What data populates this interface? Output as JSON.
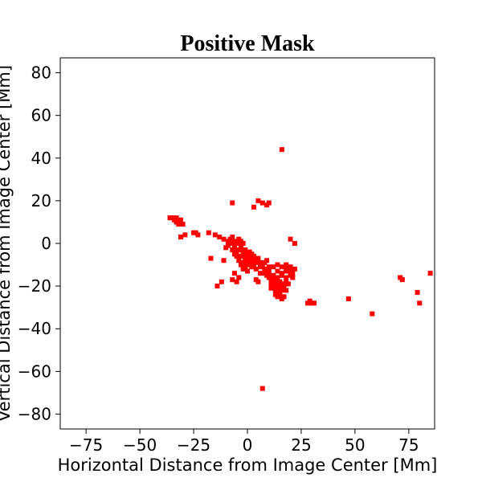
{
  "chart_data": {
    "type": "scatter",
    "title": "Positive Mask",
    "xlabel": "Horizontal Distance from Image Center [Mm]",
    "ylabel": "Vertical Distance from Image Center [Mm]",
    "xlim": [
      -87,
      87
    ],
    "ylim": [
      -87,
      87
    ],
    "xticks": [
      -75,
      -50,
      -25,
      0,
      25,
      50,
      75
    ],
    "yticks": [
      80,
      60,
      40,
      20,
      0,
      -20,
      -40,
      -60,
      -80
    ],
    "xtick_labels": [
      "−75",
      "−50",
      "−25",
      "0",
      "25",
      "50",
      "75"
    ],
    "ytick_labels": [
      "80",
      "60",
      "40",
      "20",
      "0",
      "−20",
      "−40",
      "−60",
      "−80"
    ],
    "grid": false,
    "color": "#ff0000",
    "series": [
      {
        "x": [
          -35,
          -33,
          -31,
          -34,
          -32,
          -30,
          -36,
          -33,
          -32,
          -25,
          -24,
          -31,
          -23,
          -29,
          -18,
          -15,
          -13,
          -11,
          -9,
          -8,
          -7,
          -6,
          -5,
          -4,
          -3,
          -10,
          -9,
          -8,
          -7,
          -6,
          -5,
          -4,
          -3,
          -2,
          -7,
          -6,
          -5,
          -4,
          -3,
          -2,
          -1,
          0,
          1,
          2,
          -6,
          -5,
          -4,
          -3,
          -2,
          -1,
          0,
          1,
          2,
          3,
          4,
          5,
          -4,
          -3,
          -2,
          -1,
          0,
          1,
          2,
          3,
          4,
          5,
          6,
          7,
          8,
          9,
          -3,
          -2,
          -1,
          0,
          2,
          4,
          6,
          8,
          9,
          10,
          -2,
          0,
          6,
          8,
          10,
          12,
          14,
          16,
          18,
          20,
          22,
          8,
          9,
          10,
          12,
          14,
          16,
          18,
          20,
          21,
          10,
          11,
          12,
          13,
          14,
          16,
          18,
          20,
          21,
          11,
          12,
          13,
          14,
          15,
          16,
          17,
          18,
          19,
          11,
          12,
          13,
          14,
          15,
          16,
          17,
          18,
          13,
          14,
          15,
          16,
          17,
          -6,
          -4,
          4,
          5,
          14,
          15,
          16,
          17,
          -7,
          -5,
          18,
          20,
          21,
          -12,
          -14,
          -17,
          -11,
          5,
          7,
          9,
          10,
          3,
          -7,
          16,
          20,
          22,
          28,
          29,
          30,
          31,
          47,
          58,
          71,
          72,
          79,
          80,
          85,
          16,
          7
        ],
        "y": [
          12,
          12,
          11,
          11,
          10,
          9,
          12,
          10,
          9,
          5,
          5,
          3,
          4,
          4,
          5,
          4,
          3,
          2,
          1,
          2,
          3,
          1,
          0,
          2,
          1,
          -2,
          -1,
          0,
          1,
          -1,
          0,
          1,
          -1,
          0,
          -3,
          -2,
          -4,
          -3,
          -2,
          -4,
          -3,
          -5,
          -4,
          -5,
          -5,
          -6,
          -7,
          -6,
          -5,
          -7,
          -6,
          -8,
          -7,
          -6,
          -8,
          -7,
          -8,
          -9,
          -9,
          -8,
          -9,
          -10,
          -9,
          -10,
          -9,
          -8,
          -9,
          -10,
          -9,
          -8,
          -10,
          -11,
          -12,
          -10,
          -11,
          -12,
          -11,
          -12,
          -13,
          -11,
          -12,
          -13,
          -14,
          -13,
          -12,
          -11,
          -10,
          -11,
          -10,
          -11,
          -12,
          -14,
          -15,
          -14,
          -15,
          -13,
          -14,
          -13,
          -14,
          -15,
          -16,
          -17,
          -18,
          -16,
          -17,
          -15,
          -16,
          -15,
          -16,
          -19,
          -18,
          -20,
          -19,
          -18,
          -20,
          -19,
          -18,
          -19,
          -21,
          -20,
          -22,
          -21,
          -23,
          -22,
          -21,
          -22,
          -24,
          -25,
          -24,
          -26,
          -25,
          -14,
          -16,
          -17,
          -18,
          -16,
          -18,
          -20,
          -19,
          -17,
          -18,
          -12,
          -13,
          -14,
          -18,
          -20,
          -7,
          -8,
          20,
          19,
          18,
          19,
          17,
          19,
          -25,
          2,
          0,
          -28,
          -27,
          -28,
          -28,
          -26,
          -33,
          -16,
          -17,
          -23,
          -28,
          -14,
          44,
          -68
        ]
      }
    ]
  }
}
